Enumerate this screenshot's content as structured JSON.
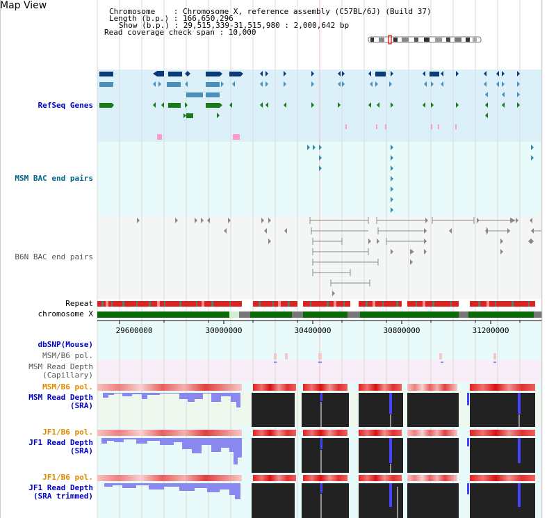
{
  "view_title": "Map View",
  "info": {
    "chromosome": "Chromosome    : Chromosome X, reference assembly (C57BL/6J) (Build 37)",
    "length": "Length (b.p.) : 166,650,296",
    "show": "Show (b.p.) : 29,515,339-31,515,980 : 2,000,642 bp",
    "coverage": "Read coverage check span : 10,000"
  },
  "tracks": {
    "refseq": "RefSeq Genes",
    "msm_bac": "MSM BAC end pairs",
    "b6n_bac": "B6N BAC end pairs",
    "repeat": "Repeat",
    "chromosome": "chromosome X",
    "dbsnp": "dbSNP(Mouse)",
    "msm_b6_pol_1": "MSM/B6 pol.",
    "msm_depth_cap_1": "MSM Read Depth",
    "msm_depth_cap_2": "(Capillary)",
    "msm_b6_pol_2": "MSM/B6 pol.",
    "msm_depth_sra_1": "MSM Read Depth",
    "msm_depth_sra_2": "(SRA)",
    "jf1_b6_pol_1": "JF1/B6 pol.",
    "jf1_depth_sra_1": "JF1 Read Depth",
    "jf1_depth_sra_2": "(SRA)",
    "jf1_b6_pol_2": "JF1/B6 pol.",
    "jf1_depth_trim_1": "JF1 Read Depth",
    "jf1_depth_trim_2": "(SRA trimmed)"
  },
  "axis_ticks": [
    "29600000",
    "30000000",
    "30400000",
    "30800000",
    "31200000"
  ],
  "colors": {
    "refseq_bg": "#dcf0fa",
    "bac_bg": "#e8fafa",
    "b6n_bg": "#f4f8f8",
    "link_blue": "#0000cc",
    "teal": "#006688",
    "orange": "#e08a00",
    "chrom_green": "#006600"
  }
}
